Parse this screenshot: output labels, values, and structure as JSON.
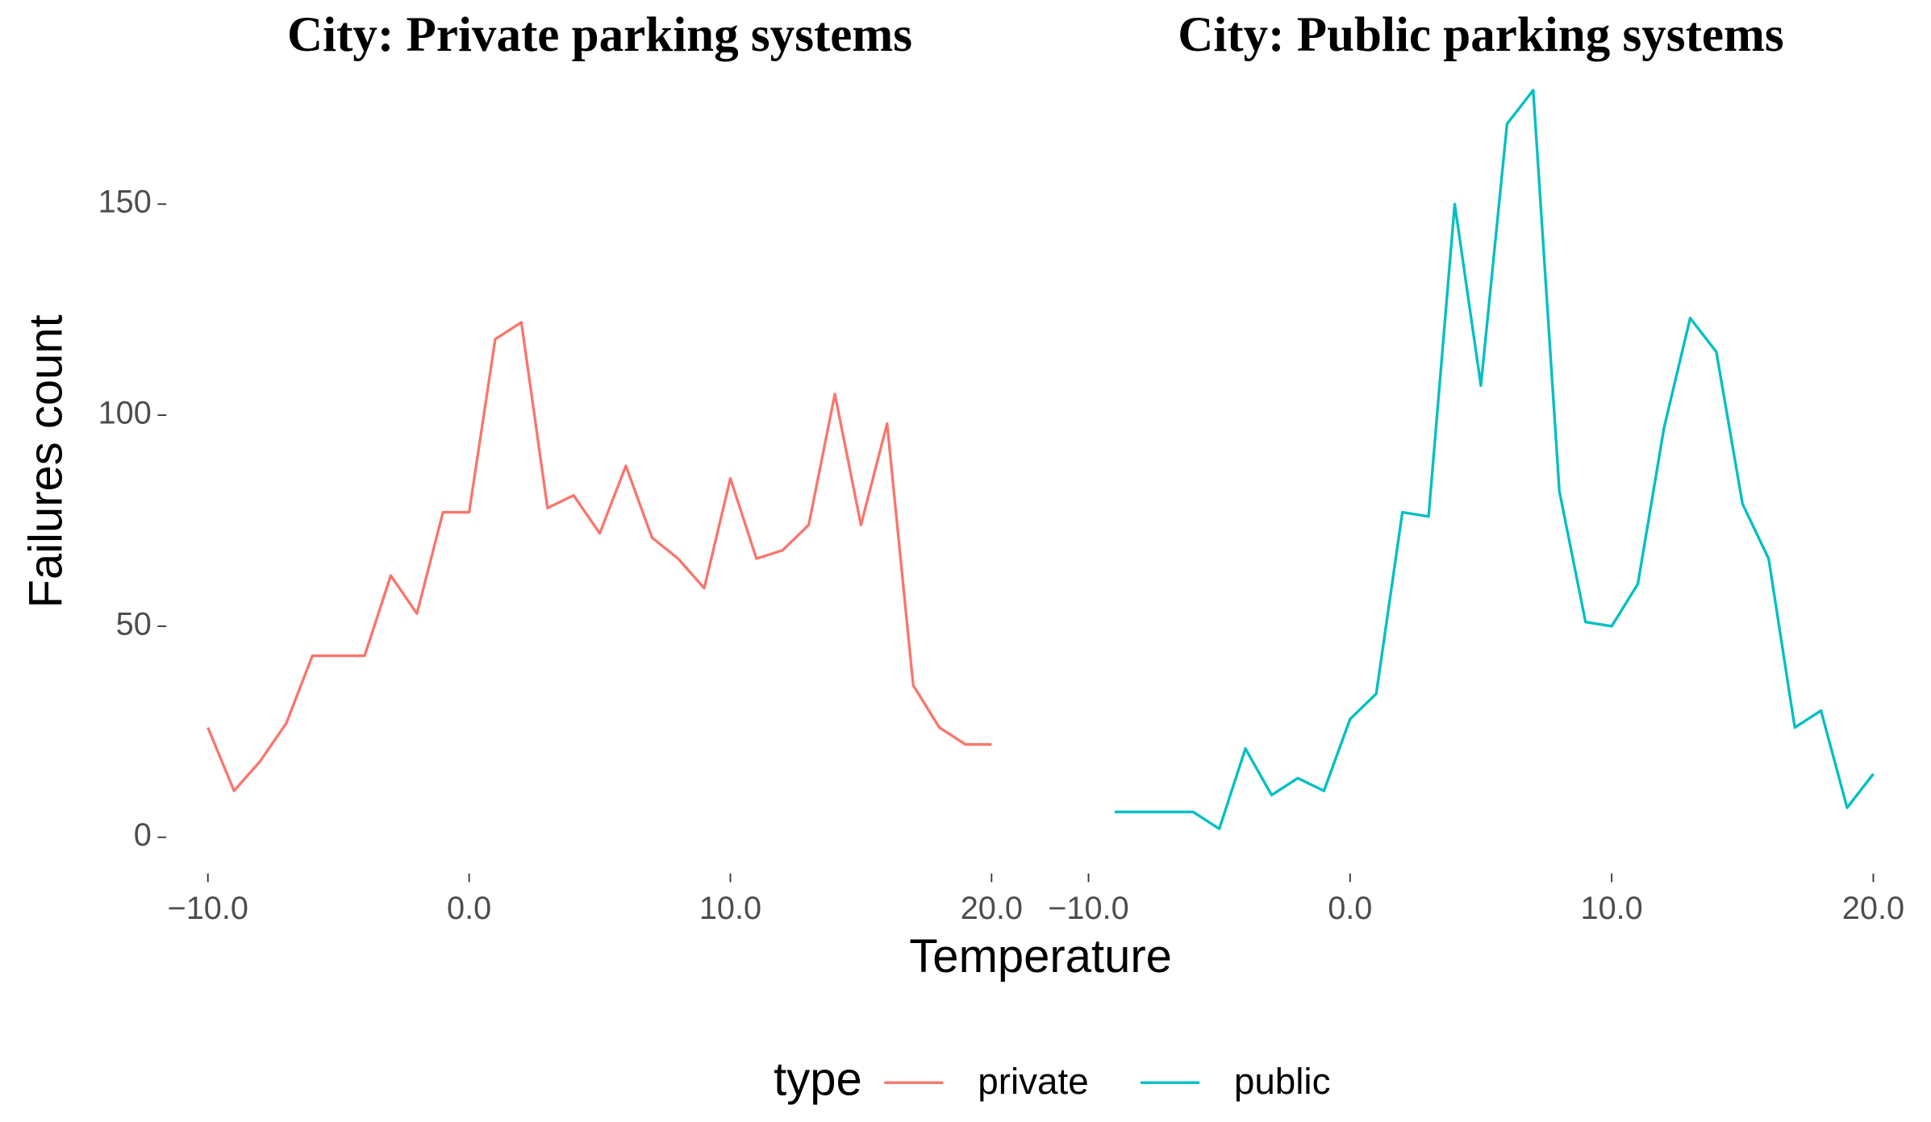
{
  "chart_data": [
    {
      "type": "line",
      "title": "City: Private parking systems",
      "x": [
        -10,
        -9,
        -8,
        -7,
        -6,
        -5,
        -4,
        -3,
        -2,
        -1,
        0,
        1,
        2,
        3,
        4,
        5,
        6,
        7,
        8,
        9,
        10,
        11,
        12,
        13,
        14,
        15,
        16,
        17,
        18,
        19,
        20
      ],
      "series": [
        {
          "name": "private",
          "color": "#f8766d",
          "values": [
            26,
            11,
            18,
            27,
            43,
            43,
            43,
            62,
            53,
            77,
            77,
            118,
            122,
            78,
            81,
            72,
            88,
            71,
            66,
            59,
            85,
            66,
            68,
            74,
            105,
            74,
            98,
            36,
            26,
            22,
            22
          ]
        }
      ],
      "xlim": [
        -11.5,
        21.5
      ],
      "ylim": [
        -8,
        180
      ],
      "xticks": [
        {
          "value": -10,
          "label": "−10.0"
        },
        {
          "value": 0,
          "label": "0.0"
        },
        {
          "value": 10,
          "label": "10.0"
        },
        {
          "value": 20,
          "label": "20.0"
        }
      ],
      "yticks": [
        0,
        50,
        100,
        150
      ]
    },
    {
      "type": "line",
      "title": "City: Public parking systems",
      "x": [
        -9,
        -8,
        -7,
        -6,
        -5,
        -4,
        -3,
        -2,
        -1,
        0,
        1,
        2,
        3,
        4,
        5,
        6,
        7,
        8,
        9,
        10,
        11,
        12,
        13,
        14,
        15,
        16,
        17,
        18,
        19,
        20
      ],
      "series": [
        {
          "name": "public",
          "color": "#00bfc4",
          "values": [
            6,
            6,
            6,
            6,
            2,
            21,
            10,
            14,
            11,
            28,
            34,
            77,
            76,
            150,
            107,
            169,
            177,
            82,
            51,
            50,
            60,
            97,
            123,
            115,
            79,
            66,
            26,
            30,
            7,
            15
          ]
        }
      ],
      "xlim": [
        -11.5,
        21.5
      ],
      "ylim": [
        -8,
        180
      ],
      "xticks": [
        {
          "value": -10,
          "label": "−10.0"
        },
        {
          "value": 0,
          "label": "0.0"
        },
        {
          "value": 10,
          "label": "10.0"
        },
        {
          "value": 20,
          "label": "20.0"
        }
      ]
    }
  ],
  "xlabel": "Temperature",
  "ylabel": "Failures count",
  "legend_title": "type"
}
